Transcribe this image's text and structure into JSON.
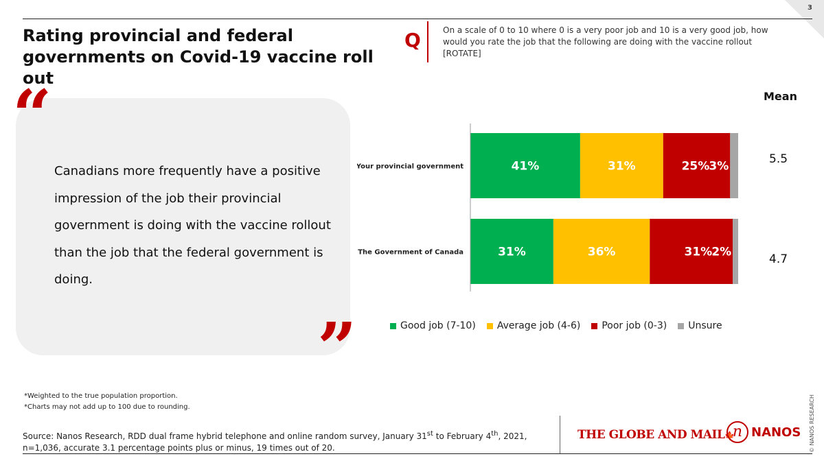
{
  "page_number": "3",
  "title": "Rating provincial and federal governments on Covid-19 vaccine roll out",
  "question": {
    "marker": "Q",
    "text": "On a scale of 0 to 10 where 0 is a very poor job and 10 is a very good job, how would you rate the job that the following are doing with the vaccine rollout [ROTATE]"
  },
  "quote": {
    "open_mark": "“",
    "close_mark": "”",
    "text": "Canadians more frequently have a positive impression of the job their provincial government is doing with the vaccine rollout than the job that the federal government is doing."
  },
  "means": {
    "header": "Mean",
    "values": [
      "5.5",
      "4.7"
    ]
  },
  "chart_data": {
    "type": "bar",
    "orientation": "horizontal",
    "stacked": true,
    "unit": "%",
    "xlim": [
      0,
      100
    ],
    "categories": [
      "Your provincial government",
      "The Government of Canada"
    ],
    "series": [
      {
        "name": "Good job (7-10)",
        "color": "#00b050",
        "values": [
          41,
          31
        ]
      },
      {
        "name": "Average job (4-6)",
        "color": "#ffc000",
        "values": [
          31,
          36
        ]
      },
      {
        "name": "Poor job (0-3)",
        "color": "#c00000",
        "values": [
          25,
          31
        ]
      },
      {
        "name": "Unsure",
        "color": "#a6a6a6",
        "values": [
          3,
          2
        ]
      }
    ],
    "legend_position": "bottom"
  },
  "footnotes": [
    "*Weighted to the true population proportion.",
    "*Charts may not add up to 100 due to rounding."
  ],
  "source": {
    "prefix": "Source: Nanos Research, RDD dual frame hybrid  telephone and online random survey, January 31",
    "sup1": "st",
    "middle": " to February 4",
    "sup2": "th",
    "suffix": ",  2021, n=1,036, accurate 3.1 percentage points plus or minus, 19 times out of 20."
  },
  "logos": {
    "globe_and_mail": "THE GLOBE AND MAIL",
    "globe_leaf": "🍁",
    "nanos_letter": "n",
    "nanos_word": "NANOS"
  },
  "copyright": "© NANOS RESEARCH",
  "colors": {
    "accent": "#c00000"
  }
}
